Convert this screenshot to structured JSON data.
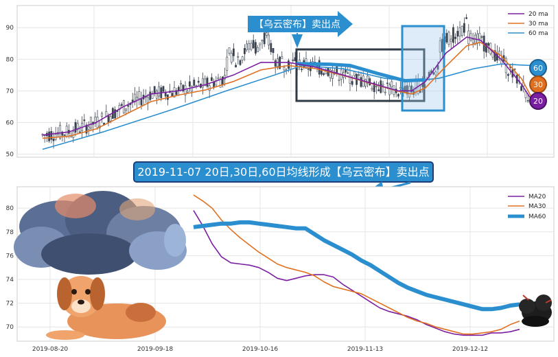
{
  "chart_data": [
    {
      "type": "candlestick-line",
      "ylim": [
        49,
        97
      ],
      "yticks": [
        50,
        60,
        70,
        80,
        90
      ],
      "grid": true,
      "legend_position": "top-right",
      "series": [
        {
          "name": "20 ma",
          "color": "#7b1fa2"
        },
        {
          "name": "30 ma",
          "color": "#e07020"
        },
        {
          "name": "60 ma",
          "color": "#2b8fcf"
        }
      ],
      "annotation_arrow_label": "【乌云密布】卖出点",
      "badges": [
        "60",
        "30",
        "20"
      ]
    },
    {
      "type": "line",
      "ylim": [
        68.8,
        81.8
      ],
      "yticks": [
        70,
        72,
        74,
        76,
        78,
        80
      ],
      "xtick_labels": [
        "2019-08-20",
        "2019-09-18",
        "2019-10-16",
        "2019-11-13",
        "2019-12-12"
      ],
      "grid": true,
      "legend_position": "top-right",
      "title_banner": "2019-11-07 20日,30日,60日均线形成【乌云密布】卖出点",
      "series": [
        {
          "name": "MA20",
          "color": "#7b1fa2",
          "x": [
            0,
            2,
            4,
            6,
            8,
            10,
            12,
            14,
            16,
            18,
            20,
            22,
            24,
            26,
            28,
            30,
            32,
            34,
            36,
            38,
            40,
            42,
            44,
            46,
            48,
            50,
            52,
            54,
            56,
            58,
            60,
            62,
            64,
            66,
            68,
            70
          ],
          "values": [
            79.8,
            78.5,
            77.0,
            75.9,
            75.4,
            75.3,
            75.2,
            75.0,
            74.6,
            74.1,
            73.9,
            74.1,
            74.3,
            74.4,
            74.4,
            74.2,
            73.6,
            73.1,
            72.6,
            72.1,
            71.6,
            71.3,
            71.1,
            70.9,
            70.6,
            70.2,
            69.9,
            69.6,
            69.4,
            69.3,
            69.3,
            69.3,
            69.5,
            69.5,
            69.6,
            69.8
          ]
        },
        {
          "name": "MA30",
          "color": "#e07020",
          "x": [
            0,
            2,
            4,
            6,
            8,
            10,
            12,
            14,
            16,
            18,
            20,
            22,
            24,
            26,
            28,
            30,
            32,
            34,
            36,
            38,
            40,
            42,
            44,
            46,
            48,
            50,
            52,
            54,
            56,
            58,
            60,
            62,
            64,
            66,
            68,
            70
          ],
          "values": [
            81.1,
            80.6,
            80.0,
            79.0,
            78.2,
            77.5,
            76.9,
            76.3,
            75.8,
            75.3,
            75.0,
            74.8,
            74.6,
            74.3,
            73.8,
            73.4,
            73.2,
            73.0,
            72.8,
            72.4,
            72.0,
            71.6,
            71.2,
            70.8,
            70.5,
            70.3,
            70.0,
            69.8,
            69.6,
            69.4,
            69.4,
            69.5,
            69.6,
            69.8,
            70.2,
            70.5
          ]
        },
        {
          "name": "MA60",
          "color": "#2b8fcf",
          "x": [
            0,
            2,
            4,
            6,
            8,
            10,
            12,
            14,
            16,
            18,
            20,
            22,
            24,
            26,
            28,
            30,
            32,
            34,
            36,
            38,
            40,
            42,
            44,
            46,
            48,
            50,
            52,
            54,
            56,
            58,
            60,
            62,
            64,
            66,
            68,
            70
          ],
          "values": [
            78.4,
            78.5,
            78.6,
            78.7,
            78.7,
            78.8,
            78.8,
            78.7,
            78.6,
            78.5,
            78.4,
            78.3,
            78.3,
            77.8,
            77.3,
            76.9,
            76.5,
            76.1,
            75.6,
            75.2,
            74.7,
            74.2,
            73.7,
            73.3,
            73.0,
            72.7,
            72.5,
            72.3,
            72.1,
            71.9,
            71.7,
            71.5,
            71.5,
            71.6,
            71.8,
            71.9
          ]
        }
      ]
    }
  ]
}
